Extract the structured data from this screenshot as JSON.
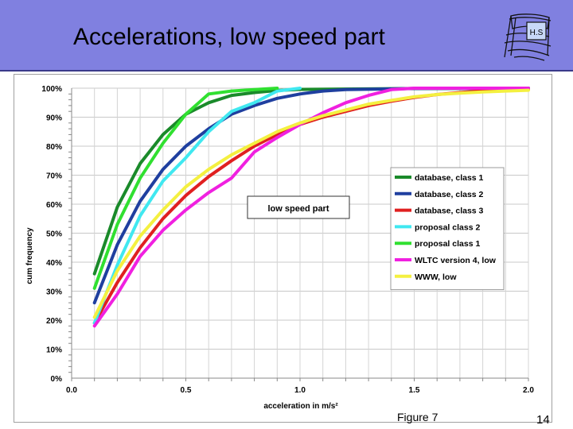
{
  "slide": {
    "title": "Accelerations, low speed part",
    "logo_text": "H.S",
    "caption": "Figure 7",
    "page_number": "14"
  },
  "chart_data": {
    "type": "line",
    "xlabel": "acceleration in m/s²",
    "ylabel": "cum frequency",
    "xlim": [
      0,
      2.0
    ],
    "ylim": [
      0,
      100
    ],
    "x_ticks": [
      "0.0",
      "0.5",
      "1.0",
      "1.5",
      "2.0"
    ],
    "y_ticks": [
      "0%",
      "10%",
      "20%",
      "30%",
      "40%",
      "50%",
      "60%",
      "70%",
      "80%",
      "90%",
      "100%"
    ],
    "grid": true,
    "annotation": "low speed part",
    "legend_position": "right",
    "series": [
      {
        "name": "database, class 1",
        "color": "#1a8a2a",
        "x": [
          0.1,
          0.2,
          0.3,
          0.4,
          0.5,
          0.6,
          0.7,
          0.8,
          0.9,
          1.0,
          1.5,
          2.0
        ],
        "values": [
          36,
          59,
          74,
          84,
          91,
          95,
          97.5,
          98.5,
          99.2,
          99.6,
          99.9,
          100
        ]
      },
      {
        "name": "database, class 2",
        "color": "#1f3f9f",
        "x": [
          0.1,
          0.2,
          0.3,
          0.4,
          0.5,
          0.6,
          0.7,
          0.8,
          0.9,
          1.0,
          1.1,
          1.2,
          1.5,
          2.0
        ],
        "values": [
          26,
          46,
          61,
          72,
          80,
          86,
          91,
          94,
          96.5,
          98,
          99,
          99.5,
          99.9,
          100
        ]
      },
      {
        "name": "database, class 3",
        "color": "#e02020",
        "x": [
          0.1,
          0.2,
          0.3,
          0.4,
          0.5,
          0.6,
          0.7,
          0.8,
          0.9,
          1.0,
          1.1,
          1.2,
          1.3,
          1.4,
          1.5,
          1.6,
          1.7,
          1.8,
          1.9,
          2.0
        ],
        "values": [
          19,
          33,
          45,
          55,
          63,
          69.5,
          75,
          80,
          84,
          87.5,
          90,
          92,
          94,
          95.5,
          96.8,
          97.8,
          98.5,
          99.1,
          99.5,
          99.7
        ]
      },
      {
        "name": "proposal class 2",
        "color": "#40e8f0",
        "x": [
          0.1,
          0.2,
          0.3,
          0.4,
          0.5,
          0.6,
          0.7,
          0.8,
          0.9,
          1.0
        ],
        "values": [
          19,
          39,
          56,
          68,
          76,
          85,
          92,
          95,
          99,
          100
        ]
      },
      {
        "name": "proposal class 1",
        "color": "#30e030",
        "x": [
          0.1,
          0.2,
          0.3,
          0.4,
          0.5,
          0.6,
          0.7,
          0.8,
          0.9
        ],
        "values": [
          31,
          53,
          69,
          81,
          91,
          98,
          99,
          99.5,
          100
        ]
      },
      {
        "name": "WLTC version 4, low",
        "color": "#f020e0",
        "x": [
          0.1,
          0.2,
          0.3,
          0.4,
          0.5,
          0.6,
          0.7,
          0.8,
          0.9,
          1.0,
          1.1,
          1.2,
          1.3,
          1.4,
          1.5,
          2.0
        ],
        "values": [
          18,
          29,
          42,
          51,
          58,
          64,
          69,
          78,
          83,
          87.5,
          91.5,
          95,
          97.5,
          99.5,
          100,
          100
        ]
      },
      {
        "name": "WWW, low",
        "color": "#f4f040",
        "x": [
          0.1,
          0.2,
          0.3,
          0.4,
          0.5,
          0.6,
          0.7,
          0.8,
          0.9,
          1.0,
          1.1,
          1.2,
          1.3,
          1.4,
          1.5,
          1.6,
          1.7,
          1.8,
          1.9,
          2.0
        ],
        "values": [
          21,
          37,
          49,
          58,
          66,
          72,
          77,
          81,
          85,
          88,
          90.5,
          92.5,
          94.5,
          95.8,
          97,
          97.8,
          98.3,
          98.7,
          99,
          99.3
        ]
      }
    ]
  }
}
